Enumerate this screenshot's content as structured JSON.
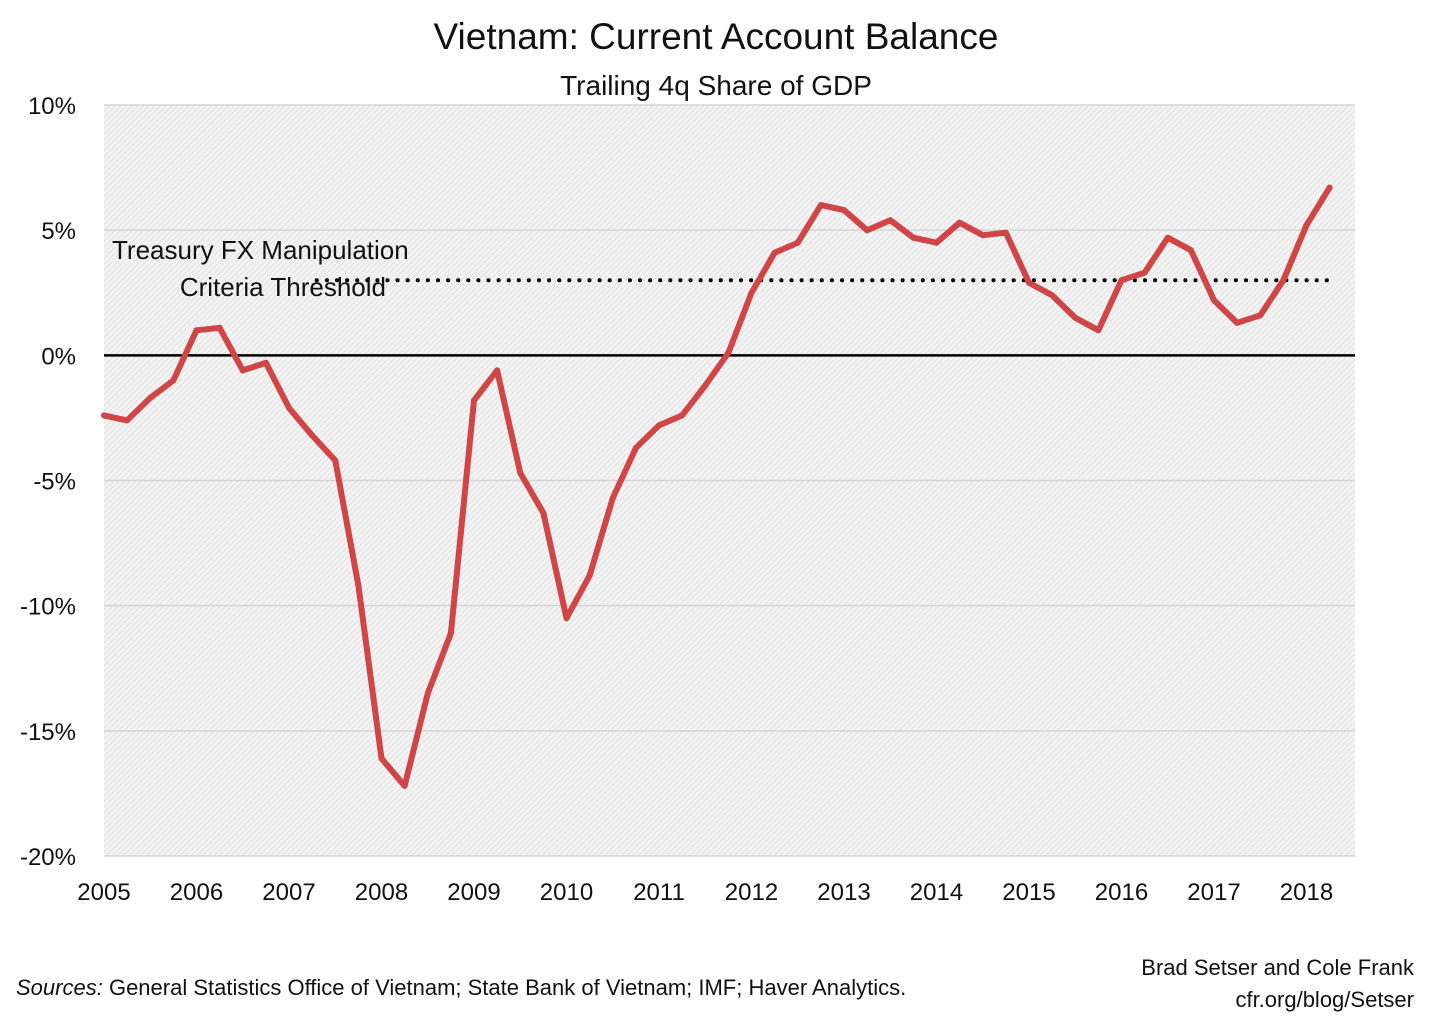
{
  "header": {
    "title": "Vietnam: Current Account Balance",
    "subtitle": "Trailing 4q Share of GDP"
  },
  "footer": {
    "sources_label": "Sources:",
    "sources_text": "General Statistics Office of Vietnam; State Bank of Vietnam; IMF; Haver Analytics.",
    "author": "Brad Setser and Cole Frank",
    "url": "cfr.org/blog/Setser"
  },
  "chart_data": {
    "type": "line",
    "title": "Vietnam: Current Account Balance",
    "subtitle": "Trailing 4q Share of GDP",
    "xlabel": "",
    "ylabel": "",
    "xlim": [
      2005,
      2018.5
    ],
    "ylim": [
      -20,
      10
    ],
    "x_ticks": [
      2005,
      2006,
      2007,
      2008,
      2009,
      2010,
      2011,
      2012,
      2013,
      2014,
      2015,
      2016,
      2017,
      2018
    ],
    "x_tick_labels": [
      "2005",
      "2006",
      "2007",
      "2008",
      "2009",
      "2010",
      "2011",
      "2012",
      "2013",
      "2014",
      "2015",
      "2016",
      "2017",
      "2018"
    ],
    "y_ticks": [
      -20,
      -15,
      -10,
      -5,
      0,
      5,
      10
    ],
    "y_tick_labels": [
      "-20%",
      "-15%",
      "-10%",
      "-5%",
      "0%",
      "5%",
      "10%"
    ],
    "grid": true,
    "line_color": "#d04545",
    "series": [
      {
        "x": [
          2005.0,
          2005.25,
          2005.5,
          2005.75,
          2006.0,
          2006.25,
          2006.5,
          2006.75,
          2007.0,
          2007.25,
          2007.5,
          2007.75,
          2008.0,
          2008.25,
          2008.5,
          2008.75,
          2009.0,
          2009.25,
          2009.5,
          2009.75,
          2010.0,
          2010.25,
          2010.5,
          2010.75,
          2011.0,
          2011.25,
          2011.5,
          2011.75,
          2012.0,
          2012.25,
          2012.5,
          2012.75,
          2013.0,
          2013.25,
          2013.5,
          2013.75,
          2014.0,
          2014.25,
          2014.5,
          2014.75,
          2015.0,
          2015.25,
          2015.5,
          2015.75,
          2016.0,
          2016.25,
          2016.5,
          2016.75,
          2017.0,
          2017.25,
          2017.5,
          2017.75,
          2018.0,
          2018.25
        ],
        "values": [
          -2.4,
          -2.6,
          -1.7,
          -1.0,
          1.0,
          1.1,
          -0.6,
          -0.3,
          -2.1,
          -3.2,
          -4.2,
          -9.2,
          -16.1,
          -17.2,
          -13.5,
          -11.1,
          -1.8,
          -0.6,
          -4.7,
          -6.3,
          -10.5,
          -8.8,
          -5.7,
          -3.7,
          -2.8,
          -2.4,
          -1.2,
          0.1,
          2.5,
          4.1,
          4.5,
          6.0,
          5.8,
          5.0,
          5.4,
          4.7,
          4.5,
          5.3,
          4.8,
          4.9,
          2.9,
          2.4,
          1.5,
          1.0,
          3.0,
          3.3,
          4.7,
          4.2,
          2.2,
          1.3,
          1.6,
          3.0,
          5.2,
          6.7
        ]
      }
    ],
    "reference_line": {
      "y": 3,
      "x_start": 2007.3,
      "x_end": 2018.5,
      "style": "dotted",
      "label_lines": [
        "Treasury FX Manipulation",
        "Criteria Threshold"
      ]
    }
  }
}
